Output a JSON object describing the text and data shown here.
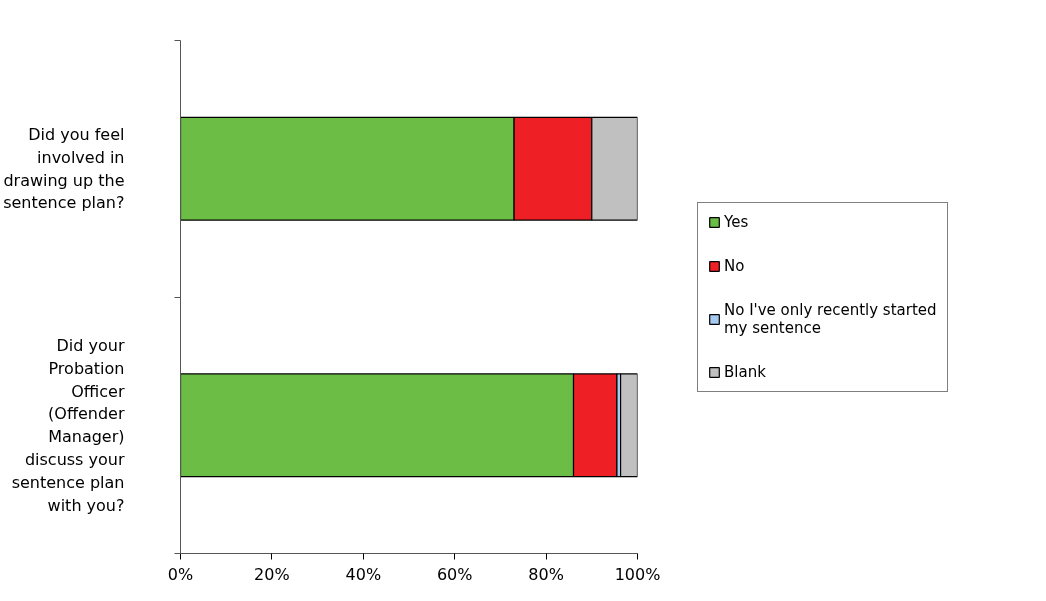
{
  "chart_data": {
    "type": "bar",
    "orientation": "horizontal",
    "stacked": true,
    "categories": [
      "Did you feel involved in drawing up the sentence plan?",
      "Did your Probation Officer (Offender Manager) discuss your sentence plan with you?"
    ],
    "series": [
      {
        "name": "Yes",
        "color": "#6cbd45",
        "values": [
          73,
          86
        ]
      },
      {
        "name": "No",
        "color": "#ee1f25",
        "values": [
          17,
          9.5
        ]
      },
      {
        "name": "No I've only recently started my sentence",
        "color": "#a6caf0",
        "values": [
          0,
          0.8
        ]
      },
      {
        "name": "Blank",
        "color": "#c0c0c0",
        "values": [
          10,
          3.7
        ]
      }
    ],
    "xlim": [
      0,
      100
    ],
    "xticks": [
      {
        "value": 0,
        "label": "0%"
      },
      {
        "value": 20,
        "label": "20%"
      },
      {
        "value": 40,
        "label": "40%"
      },
      {
        "value": 60,
        "label": "60%"
      },
      {
        "value": 80,
        "label": "80%"
      },
      {
        "value": 100,
        "label": "100%"
      }
    ],
    "grid": false,
    "legend": "right"
  }
}
